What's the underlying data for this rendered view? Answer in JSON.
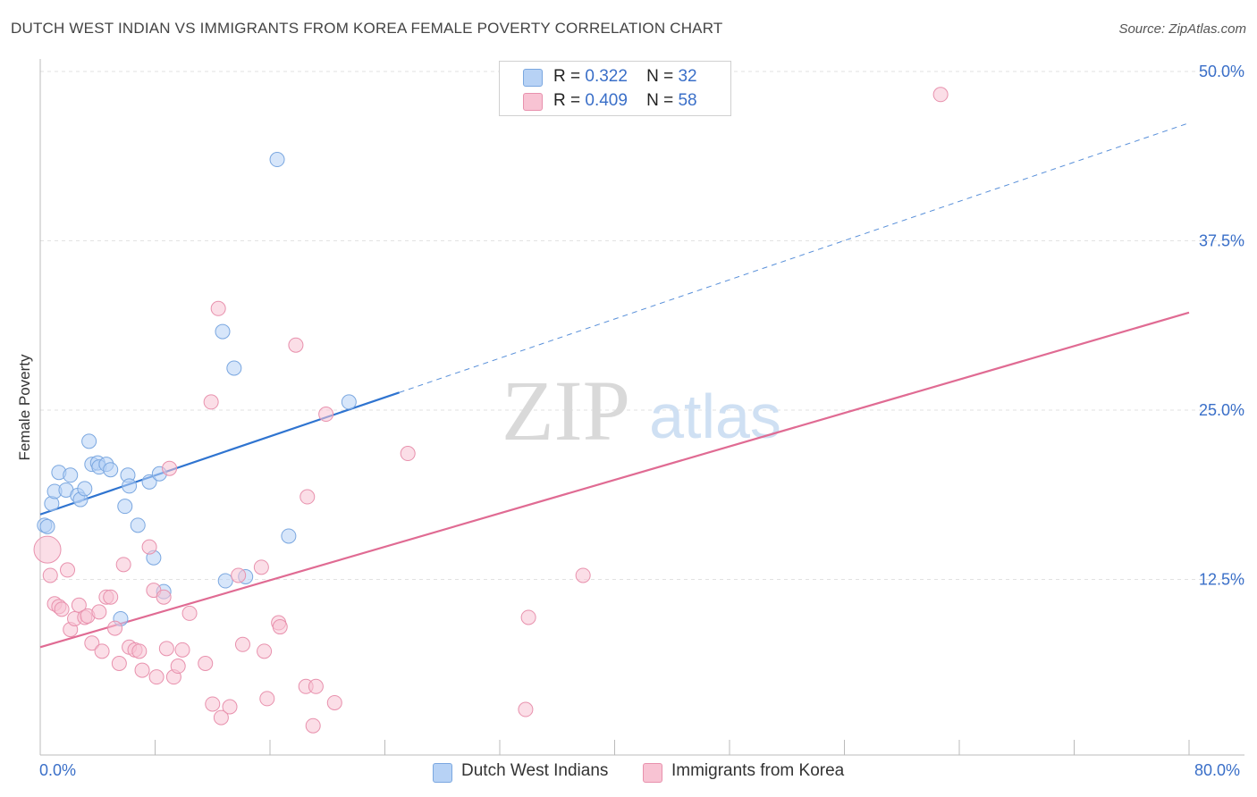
{
  "title": "DUTCH WEST INDIAN VS IMMIGRANTS FROM KOREA FEMALE POVERTY CORRELATION CHART",
  "source": "Source: ZipAtlas.com",
  "watermark": {
    "zip": "ZIP",
    "atlas": "atlas"
  },
  "legend_top": {
    "rows": [
      {
        "r_label": "R =",
        "r_value": "0.322",
        "n_label": "N =",
        "n_value": "32",
        "color": "#b7d2f5",
        "border": "#7aa7e0"
      },
      {
        "r_label": "R =",
        "r_value": "0.409",
        "n_label": "N =",
        "n_value": "58",
        "color": "#f8c3d3",
        "border": "#e891ad"
      }
    ]
  },
  "legend_bottom": {
    "items": [
      {
        "label": "Dutch West Indians",
        "color": "#b7d2f5",
        "border": "#7aa7e0"
      },
      {
        "label": "Immigrants from Korea",
        "color": "#f8c3d3",
        "border": "#e891ad"
      }
    ]
  },
  "x_axis": {
    "min_label": "0.0%",
    "max_label": "80.0%"
  },
  "chart_data": {
    "type": "scatter",
    "title": "DUTCH WEST INDIAN VS IMMIGRANTS FROM KOREA FEMALE POVERTY CORRELATION CHART",
    "xlabel": "",
    "ylabel": "Female Poverty",
    "xlim": [
      0,
      80
    ],
    "ylim": [
      0,
      50
    ],
    "y_ticks": [
      12.5,
      25.0,
      37.5,
      50.0
    ],
    "y_tick_labels": [
      "12.5%",
      "25.0%",
      "37.5%",
      "50.0%"
    ],
    "grid": "horizontal dashed",
    "legend_placement": "top-center",
    "series": [
      {
        "name": "Dutch West Indians",
        "color": "#7aa7e0",
        "fill": "#b7d2f5",
        "line_color": "#2f74d0",
        "trend": {
          "x0": 0,
          "y0": 17.3,
          "x1": 25,
          "y1": 26.3,
          "dashed_to": 80,
          "dashed_y": 46.2
        },
        "points": [
          [
            0.3,
            16.5
          ],
          [
            0.5,
            16.4
          ],
          [
            0.8,
            18.1
          ],
          [
            1.0,
            19.0
          ],
          [
            1.3,
            20.4
          ],
          [
            1.8,
            19.1
          ],
          [
            2.1,
            20.2
          ],
          [
            2.6,
            18.7
          ],
          [
            2.8,
            18.4
          ],
          [
            3.1,
            19.2
          ],
          [
            3.4,
            22.7
          ],
          [
            3.6,
            21.0
          ],
          [
            4.0,
            21.1
          ],
          [
            4.1,
            20.8
          ],
          [
            4.6,
            21.0
          ],
          [
            4.9,
            20.6
          ],
          [
            5.6,
            9.6
          ],
          [
            5.9,
            17.9
          ],
          [
            6.1,
            20.2
          ],
          [
            6.2,
            19.4
          ],
          [
            6.8,
            16.5
          ],
          [
            7.6,
            19.7
          ],
          [
            7.9,
            14.1
          ],
          [
            8.3,
            20.3
          ],
          [
            8.6,
            11.6
          ],
          [
            12.7,
            30.8
          ],
          [
            12.9,
            12.4
          ],
          [
            13.5,
            28.1
          ],
          [
            14.3,
            12.7
          ],
          [
            16.5,
            43.5
          ],
          [
            17.3,
            15.7
          ],
          [
            21.5,
            25.6
          ]
        ]
      },
      {
        "name": "Immigrants from Korea",
        "color": "#e891ad",
        "fill": "#f8c3d3",
        "line_color": "#e06b93",
        "trend": {
          "x0": 0,
          "y0": 7.5,
          "x1": 80,
          "y1": 32.2
        },
        "points": [
          [
            0.5,
            14.7
          ],
          [
            0.7,
            12.8
          ],
          [
            1.0,
            10.7
          ],
          [
            1.3,
            10.5
          ],
          [
            1.5,
            10.3
          ],
          [
            1.9,
            13.2
          ],
          [
            2.1,
            8.8
          ],
          [
            2.4,
            9.6
          ],
          [
            2.7,
            10.6
          ],
          [
            3.1,
            9.7
          ],
          [
            3.3,
            9.8
          ],
          [
            3.6,
            7.8
          ],
          [
            4.1,
            10.1
          ],
          [
            4.3,
            7.2
          ],
          [
            4.6,
            11.2
          ],
          [
            4.9,
            11.2
          ],
          [
            5.2,
            8.9
          ],
          [
            5.5,
            6.3
          ],
          [
            5.8,
            13.6
          ],
          [
            6.2,
            7.5
          ],
          [
            6.6,
            7.3
          ],
          [
            6.9,
            7.2
          ],
          [
            7.1,
            5.8
          ],
          [
            7.6,
            14.9
          ],
          [
            7.9,
            11.7
          ],
          [
            8.1,
            5.3
          ],
          [
            8.6,
            11.2
          ],
          [
            8.8,
            7.4
          ],
          [
            9.0,
            20.7
          ],
          [
            9.3,
            5.3
          ],
          [
            9.6,
            6.1
          ],
          [
            9.9,
            7.3
          ],
          [
            10.4,
            10.0
          ],
          [
            11.5,
            6.3
          ],
          [
            11.9,
            25.6
          ],
          [
            12.0,
            3.3
          ],
          [
            12.4,
            32.5
          ],
          [
            12.6,
            2.3
          ],
          [
            13.2,
            3.1
          ],
          [
            13.8,
            12.8
          ],
          [
            14.1,
            7.7
          ],
          [
            15.4,
            13.4
          ],
          [
            15.6,
            7.2
          ],
          [
            15.8,
            3.7
          ],
          [
            16.6,
            9.3
          ],
          [
            16.7,
            9.0
          ],
          [
            17.8,
            29.8
          ],
          [
            18.5,
            4.6
          ],
          [
            18.6,
            18.6
          ],
          [
            19.0,
            1.7
          ],
          [
            19.2,
            4.6
          ],
          [
            19.9,
            24.7
          ],
          [
            20.5,
            3.4
          ],
          [
            25.6,
            21.8
          ],
          [
            33.8,
            2.9
          ],
          [
            34.0,
            9.7
          ],
          [
            37.8,
            12.8
          ],
          [
            62.7,
            48.3
          ]
        ]
      }
    ]
  }
}
